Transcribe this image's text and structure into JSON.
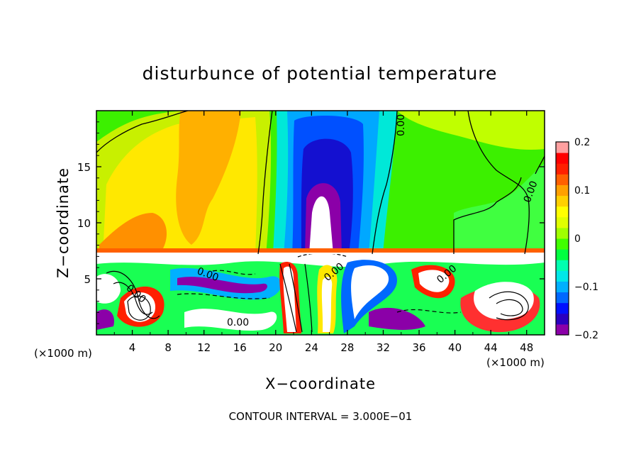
{
  "chart_data": {
    "type": "heatmap",
    "title": "disturbunce of potential temperature",
    "xlabel": "X−coordinate",
    "ylabel": "Z−coordinate",
    "x_unit": "(×1000 m)",
    "x_unit_right": "(×1000 m)",
    "xlim": [
      0,
      50
    ],
    "ylim": [
      0,
      20
    ],
    "x_ticks": [
      4,
      8,
      12,
      16,
      20,
      24,
      28,
      32,
      36,
      40,
      44,
      48
    ],
    "y_ticks": [
      5,
      10,
      15
    ],
    "grid": false,
    "legend_placement": "right",
    "colorbar": {
      "range": [
        -0.2,
        0.2
      ],
      "tick_labels": [
        "0.2",
        "0.1",
        "0",
        "−0.1",
        "−0.2"
      ],
      "tick_values": [
        0.2,
        0.1,
        0,
        -0.1,
        -0.2
      ],
      "colors": [
        "#8b00a8",
        "#2a00c0",
        "#0010ff",
        "#0068ff",
        "#00b0ff",
        "#00e8e8",
        "#00ffb0",
        "#00ff40",
        "#40ff00",
        "#a0ff00",
        "#e0ff00",
        "#ffff00",
        "#ffd000",
        "#ffa000",
        "#ff6000",
        "#ff2000",
        "#ff0000",
        "#ffa0a0"
      ]
    },
    "contour_labels": [
      "0.00",
      "0.00",
      "0.00",
      "0.00",
      "0.00",
      "0.00",
      "0.00"
    ],
    "annotation": "CONTOUR INTERVAL = 3.000E−01"
  }
}
